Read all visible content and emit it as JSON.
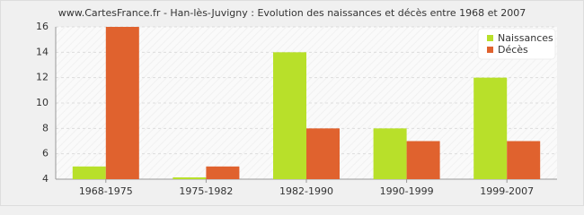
{
  "chart_data": {
    "type": "bar",
    "title": "www.CartesFrance.fr - Han-lès-Juvigny : Evolution des naissances et décès entre 1968 et 2007",
    "categories": [
      "1968-1975",
      "1975-1982",
      "1982-1990",
      "1990-1999",
      "1999-2007"
    ],
    "series": [
      {
        "name": "Naissances",
        "color": "#b8e02a",
        "values": [
          5,
          4,
          14,
          8,
          12
        ]
      },
      {
        "name": "Décès",
        "color": "#e0622e",
        "values": [
          16,
          5,
          8,
          7,
          7
        ]
      }
    ],
    "ylim": [
      4,
      16
    ],
    "yticks": [
      4,
      6,
      8,
      10,
      12,
      14,
      16
    ],
    "grid": true,
    "legend": "top-right"
  }
}
